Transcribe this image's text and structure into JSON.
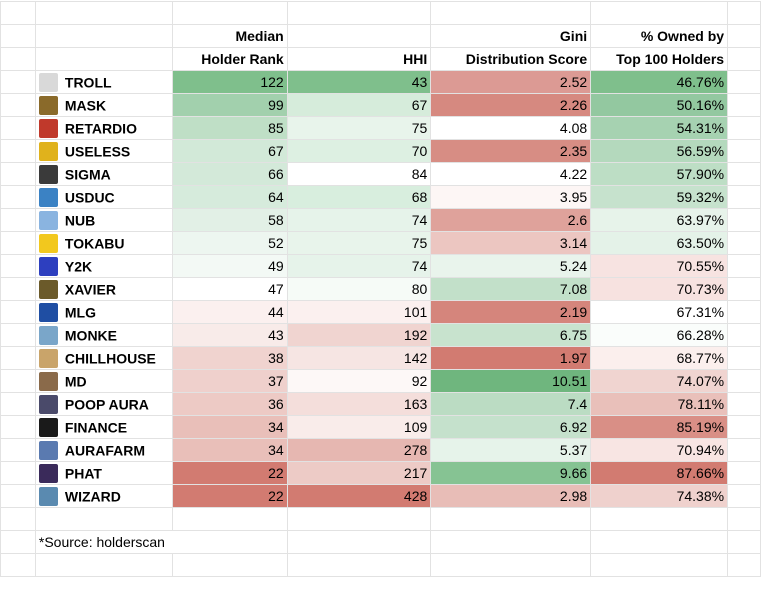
{
  "headers": {
    "row1": [
      "",
      "Median",
      "",
      "Gini",
      "% Owned by"
    ],
    "row2": [
      "",
      "Holder Rank",
      "HHI",
      "Distribution Score",
      "Top 100 Holders"
    ]
  },
  "rows": [
    {
      "name": "TROLL",
      "icon": "troll-face-icon",
      "icon_color": "#d9d9d9",
      "rank": "122",
      "hhi": "43",
      "gini": "2.52",
      "pct": "46.76%",
      "c_rank": "#7fbf8c",
      "c_hhi": "#7fbf8c",
      "c_gini": "#dc9a94",
      "c_pct": "#7fbf8c"
    },
    {
      "name": "MASK",
      "icon": "mask-icon",
      "icon_color": "#8a6a2a",
      "rank": "99",
      "hhi": "67",
      "gini": "2.26",
      "pct": "50.16%",
      "c_rank": "#a2d0ad",
      "c_hhi": "#d6ecdb",
      "c_gini": "#d68980",
      "c_pct": "#93c8a0"
    },
    {
      "name": "RETARDIO",
      "icon": "retardio-face-icon",
      "icon_color": "#c0392b",
      "rank": "85",
      "hhi": "75",
      "gini": "4.08",
      "pct": "54.31%",
      "c_rank": "#bfdfc6",
      "c_hhi": "#e8f4eb",
      "c_gini": "#ffffff",
      "c_pct": "#a6d2b1"
    },
    {
      "name": "USELESS",
      "icon": "useless-logo-icon",
      "icon_color": "#e0b21c",
      "rank": "67",
      "hhi": "70",
      "gini": "2.35",
      "pct": "56.59%",
      "c_rank": "#d2e9d8",
      "c_hhi": "#ddf0e2",
      "c_gini": "#d78d84",
      "c_pct": "#b4d9bd"
    },
    {
      "name": "SIGMA",
      "icon": "sigma-portrait-icon",
      "icon_color": "#3a3a3a",
      "rank": "66",
      "hhi": "84",
      "gini": "4.22",
      "pct": "57.90%",
      "c_rank": "#d3e9d9",
      "c_hhi": "#ffffff",
      "c_gini": "#ffffff",
      "c_pct": "#bddec5"
    },
    {
      "name": "USDUC",
      "icon": "usduc-chart-icon",
      "icon_color": "#3b82c4",
      "rank": "64",
      "hhi": "68",
      "gini": "3.95",
      "pct": "59.32%",
      "c_rank": "#d6ebdc",
      "c_hhi": "#d8eede",
      "c_gini": "#fdf6f5",
      "c_pct": "#c6e2cd"
    },
    {
      "name": "NUB",
      "icon": "nub-cat-icon",
      "icon_color": "#8ab4e0",
      "rank": "58",
      "hhi": "74",
      "gini": "2.6",
      "pct": "63.97%",
      "c_rank": "#e2f0e6",
      "c_hhi": "#e6f3ea",
      "c_gini": "#dfa29b",
      "c_pct": "#e7f3ea"
    },
    {
      "name": "TOKABU",
      "icon": "tokabu-icon",
      "icon_color": "#f2c81e",
      "rank": "52",
      "hhi": "75",
      "gini": "3.14",
      "pct": "63.50%",
      "c_rank": "#edf6f0",
      "c_hhi": "#e8f4eb",
      "c_gini": "#ecc6c1",
      "c_pct": "#e4f2e8"
    },
    {
      "name": "Y2K",
      "icon": "y2k-logo-icon",
      "icon_color": "#2d3fbf",
      "rank": "49",
      "hhi": "74",
      "gini": "5.24",
      "pct": "70.55%",
      "c_rank": "#f3f9f5",
      "c_hhi": "#e6f3ea",
      "c_gini": "#e9f4ec",
      "c_pct": "#f7e3e1"
    },
    {
      "name": "XAVIER",
      "icon": "xavier-face-icon",
      "icon_color": "#6b5a2a",
      "rank": "47",
      "hhi": "80",
      "gini": "7.08",
      "pct": "70.73%",
      "c_rank": "#ffffff",
      "c_hhi": "#f6fbf7",
      "c_gini": "#c2e0c9",
      "c_pct": "#f7e2e0"
    },
    {
      "name": "MLG",
      "icon": "mlg-logo-icon",
      "icon_color": "#1f4ea3",
      "rank": "44",
      "hhi": "101",
      "gini": "2.19",
      "pct": "67.31%",
      "c_rank": "#fbf0ef",
      "c_hhi": "#fbf0ef",
      "c_gini": "#d5857c",
      "c_pct": "#ffffff"
    },
    {
      "name": "MONKE",
      "icon": "monke-icon",
      "icon_color": "#7aa6c9",
      "rank": "43",
      "hhi": "192",
      "gini": "6.75",
      "pct": "66.28%",
      "c_rank": "#f8ebe9",
      "c_hhi": "#f0d4d0",
      "c_gini": "#c8e3ce",
      "c_pct": "#fafdfb"
    },
    {
      "name": "CHILLHOUSE",
      "icon": "chillhouse-icon",
      "icon_color": "#c9a46a",
      "rank": "38",
      "hhi": "142",
      "gini": "1.97",
      "pct": "68.77%",
      "c_rank": "#f0d3cf",
      "c_hhi": "#f6e5e3",
      "c_gini": "#d27b71",
      "c_pct": "#fbefed"
    },
    {
      "name": "MD",
      "icon": "md-portrait-icon",
      "icon_color": "#8a6a4a",
      "rank": "37",
      "hhi": "92",
      "gini": "10.51",
      "pct": "74.07%",
      "c_rank": "#efd0cc",
      "c_hhi": "#fdf8f7",
      "c_gini": "#6fb67e",
      "c_pct": "#f0d4d0"
    },
    {
      "name": "POOP AURA",
      "icon": "poop-aura-icon",
      "icon_color": "#4a4a6a",
      "rank": "36",
      "hhi": "163",
      "gini": "7.4",
      "pct": "78.11%",
      "c_rank": "#edcac5",
      "c_hhi": "#f4dedb",
      "c_gini": "#bbdcc3",
      "c_pct": "#e9c0ba"
    },
    {
      "name": "FINANCE",
      "icon": "finance-logo-icon",
      "icon_color": "#1a1a1a",
      "rank": "34",
      "hhi": "109",
      "gini": "6.92",
      "pct": "85.19%",
      "c_rank": "#e9bfb9",
      "c_hhi": "#f9ecea",
      "c_gini": "#c5e1cc",
      "c_pct": "#d98f86"
    },
    {
      "name": "AURAFARM",
      "icon": "aurafarm-icon",
      "icon_color": "#5a7ab0",
      "rank": "34",
      "hhi": "278",
      "gini": "5.37",
      "pct": "70.94%",
      "c_rank": "#e9bfb9",
      "c_hhi": "#e6b7b1",
      "c_gini": "#e6f3ea",
      "c_pct": "#f8e5e3"
    },
    {
      "name": "PHAT",
      "icon": "phat-pixel-icon",
      "icon_color": "#3a2a5a",
      "rank": "22",
      "hhi": "217",
      "gini": "9.66",
      "pct": "87.66%",
      "c_rank": "#d27b71",
      "c_hhi": "#edcbc6",
      "c_gini": "#86c393",
      "c_pct": "#d27b71"
    },
    {
      "name": "WIZARD",
      "icon": "wizard-icon",
      "icon_color": "#5a8ab0",
      "rank": "22",
      "hhi": "428",
      "gini": "2.98",
      "pct": "74.38%",
      "c_rank": "#d27b71",
      "c_hhi": "#d27b71",
      "c_gini": "#e8bdb7",
      "c_pct": "#efd1cd"
    }
  ],
  "source": "*Source: holderscan"
}
